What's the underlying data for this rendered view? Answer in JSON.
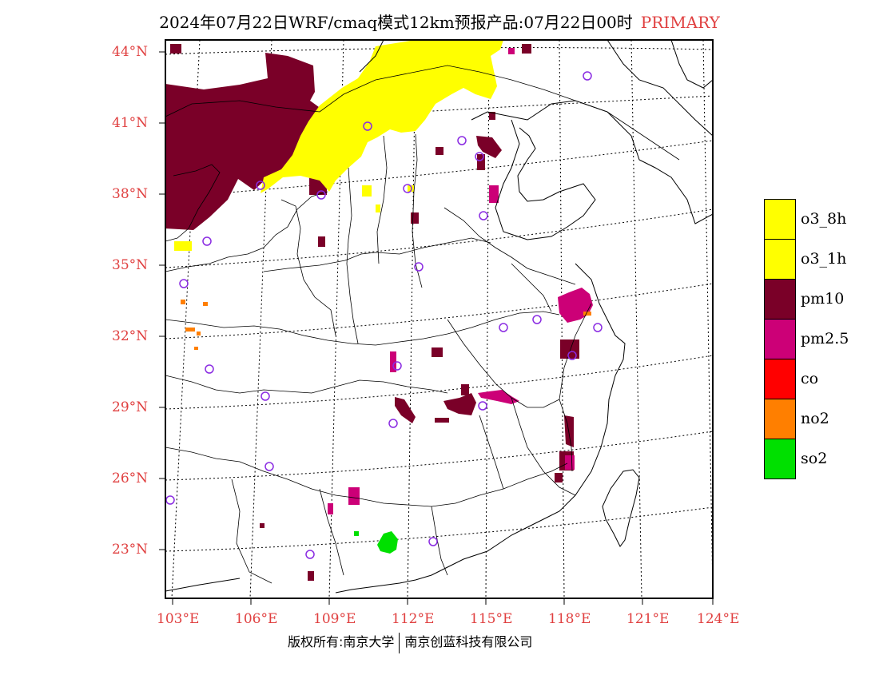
{
  "title": {
    "main": "2024年07月22日WRF/cmaq模式12km预报产品:07月22日00时",
    "tag": "PRIMARY"
  },
  "lat_labels": [
    "44°N",
    "41°N",
    "38°N",
    "35°N",
    "32°N",
    "29°N",
    "26°N",
    "23°N"
  ],
  "lon_labels": [
    "103°E",
    "106°E",
    "109°E",
    "112°E",
    "115°E",
    "118°E",
    "121°E",
    "124°E"
  ],
  "legend": [
    {
      "label": "o3_8h",
      "color": "#ffff00"
    },
    {
      "label": "o3_1h",
      "color": "#ffff00"
    },
    {
      "label": "pm10",
      "color": "#7a0028"
    },
    {
      "label": "pm2.5",
      "color": "#cc0077"
    },
    {
      "label": "co",
      "color": "#ff0000"
    },
    {
      "label": "no2",
      "color": "#ff7f00"
    },
    {
      "label": "so2",
      "color": "#00e000"
    }
  ],
  "colors": {
    "o3": "#ffff00",
    "pm10": "#7a0028",
    "pm25": "#cc0077",
    "no2": "#ff7f00",
    "so2": "#00e000",
    "station": "#8a2be2",
    "label": "#e04040"
  },
  "footer": {
    "left": "版权所有:南京大学",
    "right": "南京创蓝科技有限公司"
  }
}
